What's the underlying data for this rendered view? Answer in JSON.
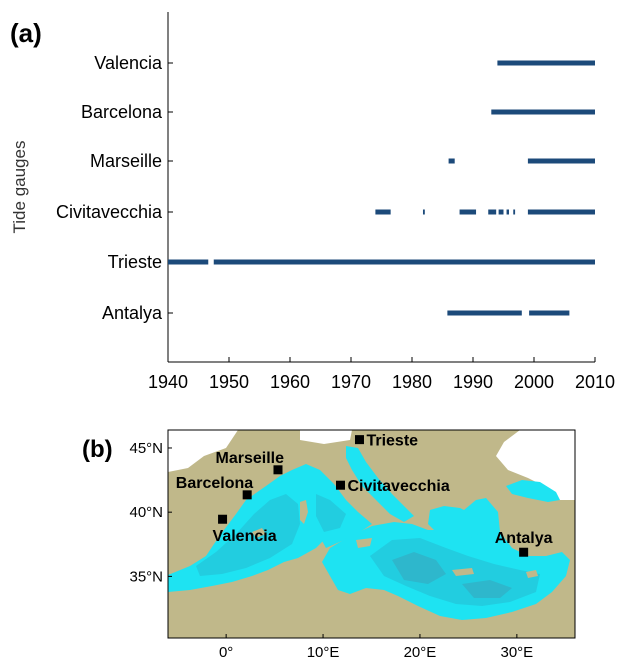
{
  "chart_data": [
    {
      "panel_label": "(a)",
      "type": "timeline",
      "ylabel": "Tide gauges",
      "xlim": [
        1940,
        2010
      ],
      "xticks": [
        "1940",
        "1950",
        "1960",
        "1970",
        "1980",
        "1990",
        "2000",
        "2010"
      ],
      "gauges": [
        {
          "name": "Valencia",
          "segments": [
            [
              1994.0,
              2010.0
            ]
          ]
        },
        {
          "name": "Barcelona",
          "segments": [
            [
              1993.0,
              2010.0
            ]
          ]
        },
        {
          "name": "Marseille",
          "segments": [
            [
              1986.0,
              1987.0
            ],
            [
              1999.0,
              2010.0
            ]
          ]
        },
        {
          "name": "Civitavecchia",
          "segments": [
            [
              1974.0,
              1976.5
            ],
            [
              1981.8,
              1982.1
            ],
            [
              1987.8,
              1990.5
            ],
            [
              1992.5,
              1993.8
            ],
            [
              1994.2,
              1995.0
            ],
            [
              1995.5,
              1995.9
            ],
            [
              1996.6,
              1996.9
            ],
            [
              1999.0,
              2010.0
            ]
          ]
        },
        {
          "name": "Trieste",
          "segments": [
            [
              1940.0,
              1946.6
            ],
            [
              1947.5,
              2010.0
            ]
          ]
        },
        {
          "name": "Antalya",
          "segments": [
            [
              1985.8,
              1998.0
            ],
            [
              1999.2,
              2005.8
            ]
          ]
        }
      ],
      "bar_color": "#1c4a7a"
    },
    {
      "panel_label": "(b)",
      "type": "map",
      "lon_range": [
        -6,
        36
      ],
      "lat_range": [
        30.2,
        46.4
      ],
      "lon_ticks": [
        {
          "value": 0,
          "label": "0°"
        },
        {
          "value": 10,
          "label": "10°E"
        },
        {
          "value": 20,
          "label": "20°E"
        },
        {
          "value": 30,
          "label": "30°E"
        }
      ],
      "lat_ticks": [
        {
          "value": 35,
          "label": "35°N"
        },
        {
          "value": 40,
          "label": "40°N"
        },
        {
          "value": 45,
          "label": "45°N"
        }
      ],
      "stations": [
        {
          "name": "Trieste",
          "lon": 13.76,
          "lat": 45.65,
          "label_pos": "right"
        },
        {
          "name": "Marseille",
          "lon": 5.35,
          "lat": 43.3,
          "label_pos": "top-left"
        },
        {
          "name": "Barcelona",
          "lon": 2.17,
          "lat": 41.35,
          "label_pos": "top-left"
        },
        {
          "name": "Civitavecchia",
          "lon": 11.8,
          "lat": 42.1,
          "label_pos": "right"
        },
        {
          "name": "Valencia",
          "lon": -0.37,
          "lat": 39.45,
          "label_pos": "bottom"
        },
        {
          "name": "Antalya",
          "lon": 30.7,
          "lat": 36.88,
          "label_pos": "top"
        }
      ],
      "colors": {
        "land": "#c0b88a",
        "sea": "#1ee3f2",
        "sea_mid": "#22cde0",
        "sea_deep": "#2eb7cc",
        "white": "#ffffff"
      }
    }
  ]
}
